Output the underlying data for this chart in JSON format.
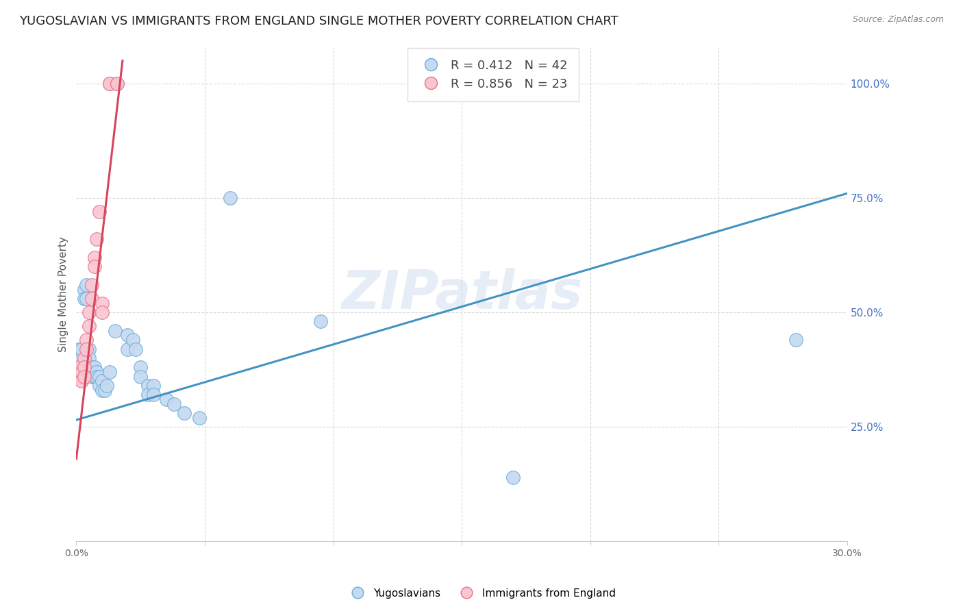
{
  "title": "YUGOSLAVIAN VS IMMIGRANTS FROM ENGLAND SINGLE MOTHER POVERTY CORRELATION CHART",
  "source": "Source: ZipAtlas.com",
  "ylabel": "Single Mother Poverty",
  "xlim": [
    0.0,
    0.3
  ],
  "ylim": [
    0.0,
    1.08
  ],
  "right_yticks": [
    0.25,
    0.5,
    0.75,
    1.0
  ],
  "right_ytick_labels": [
    "25.0%",
    "50.0%",
    "75.0%",
    "100.0%"
  ],
  "watermark": "ZIPatlas",
  "blue_color": "#c5d9f1",
  "pink_color": "#f9c6d0",
  "blue_edge_color": "#6baed6",
  "pink_edge_color": "#e87090",
  "blue_line_color": "#4393c3",
  "pink_line_color": "#d6445a",
  "blue_scatter": [
    [
      0.001,
      0.42
    ],
    [
      0.002,
      0.4
    ],
    [
      0.002,
      0.42
    ],
    [
      0.003,
      0.55
    ],
    [
      0.003,
      0.53
    ],
    [
      0.004,
      0.56
    ],
    [
      0.004,
      0.53
    ],
    [
      0.005,
      0.42
    ],
    [
      0.005,
      0.4
    ],
    [
      0.006,
      0.38
    ],
    [
      0.006,
      0.37
    ],
    [
      0.006,
      0.36
    ],
    [
      0.007,
      0.38
    ],
    [
      0.007,
      0.36
    ],
    [
      0.008,
      0.37
    ],
    [
      0.008,
      0.36
    ],
    [
      0.009,
      0.36
    ],
    [
      0.009,
      0.34
    ],
    [
      0.01,
      0.35
    ],
    [
      0.01,
      0.33
    ],
    [
      0.011,
      0.33
    ],
    [
      0.012,
      0.34
    ],
    [
      0.013,
      0.37
    ],
    [
      0.015,
      0.46
    ],
    [
      0.02,
      0.45
    ],
    [
      0.02,
      0.42
    ],
    [
      0.022,
      0.44
    ],
    [
      0.023,
      0.42
    ],
    [
      0.025,
      0.38
    ],
    [
      0.025,
      0.36
    ],
    [
      0.028,
      0.34
    ],
    [
      0.028,
      0.32
    ],
    [
      0.03,
      0.34
    ],
    [
      0.03,
      0.32
    ],
    [
      0.035,
      0.31
    ],
    [
      0.038,
      0.3
    ],
    [
      0.042,
      0.28
    ],
    [
      0.048,
      0.27
    ],
    [
      0.06,
      0.75
    ],
    [
      0.095,
      0.48
    ],
    [
      0.17,
      0.14
    ],
    [
      0.28,
      0.44
    ]
  ],
  "pink_scatter": [
    [
      0.001,
      0.38
    ],
    [
      0.001,
      0.36
    ],
    [
      0.002,
      0.37
    ],
    [
      0.002,
      0.35
    ],
    [
      0.003,
      0.4
    ],
    [
      0.003,
      0.38
    ],
    [
      0.003,
      0.36
    ],
    [
      0.004,
      0.44
    ],
    [
      0.004,
      0.42
    ],
    [
      0.005,
      0.5
    ],
    [
      0.005,
      0.47
    ],
    [
      0.006,
      0.56
    ],
    [
      0.006,
      0.53
    ],
    [
      0.007,
      0.62
    ],
    [
      0.007,
      0.6
    ],
    [
      0.008,
      0.66
    ],
    [
      0.009,
      0.72
    ],
    [
      0.01,
      0.52
    ],
    [
      0.01,
      0.5
    ],
    [
      0.013,
      1.0
    ],
    [
      0.013,
      1.0
    ],
    [
      0.016,
      1.0
    ],
    [
      0.016,
      1.0
    ]
  ],
  "blue_R": 0.412,
  "blue_N": 42,
  "pink_R": 0.856,
  "pink_N": 23,
  "blue_line_fixed": [
    [
      0.0,
      0.265
    ],
    [
      0.3,
      0.76
    ]
  ],
  "pink_line_fixed": [
    [
      0.0,
      0.18
    ],
    [
      0.018,
      1.05
    ]
  ],
  "background_color": "#ffffff",
  "grid_color": "#d8d8d8",
  "title_fontsize": 13,
  "axis_label_fontsize": 11,
  "tick_label_fontsize": 10,
  "legend_fontsize": 13,
  "right_tick_color": "#4472c4",
  "bottom_legend_labels": [
    "Yugoslavians",
    "Immigrants from England"
  ]
}
